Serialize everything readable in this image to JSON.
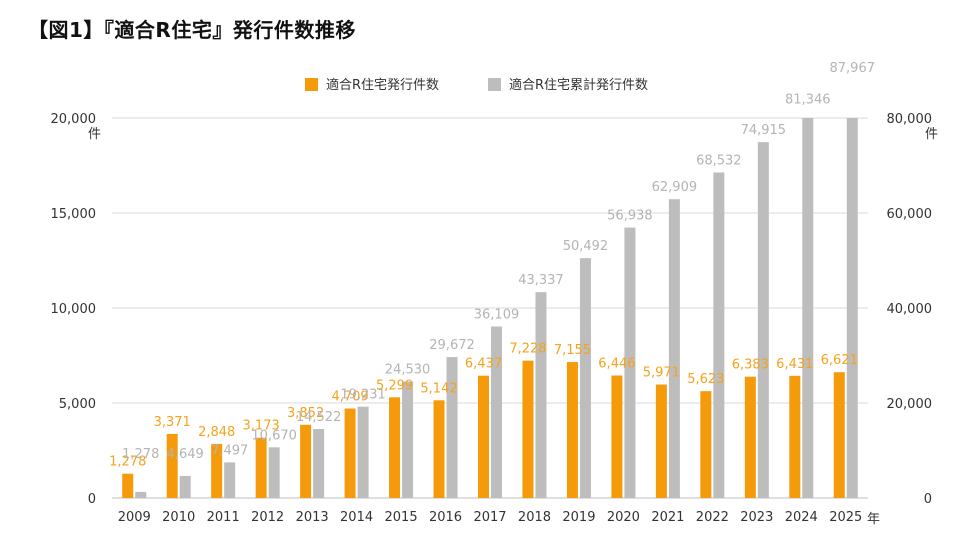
{
  "title": "【図1】『適合R住宅』発行件数推移",
  "colors": {
    "primary": "#f59a0a",
    "cumulative": "#bdbdbd",
    "primary_label": "#f7a21b",
    "cumulative_label": "#b4b4b4",
    "grid": "#d9d9d9"
  },
  "chart_data": {
    "type": "bar",
    "title": "【図1】『適合R住宅』発行件数推移",
    "categories": [
      "2009",
      "2010",
      "2011",
      "2012",
      "2013",
      "2014",
      "2015",
      "2016",
      "2017",
      "2018",
      "2019",
      "2020",
      "2021",
      "2022",
      "2023",
      "2024",
      "2025"
    ],
    "x_unit": "年",
    "series": [
      {
        "name": "適合R住宅発行件数",
        "axis": "left",
        "color": "#f59a0a",
        "values": [
          1278,
          3371,
          2848,
          3173,
          3852,
          4709,
          5299,
          5142,
          6437,
          7228,
          7155,
          6446,
          5971,
          5623,
          6383,
          6431,
          6621
        ],
        "labels": [
          "1,278",
          "3,371",
          "2,848",
          "3,173",
          "3,852",
          "4,709",
          "5,299",
          "5,142",
          "6,437",
          "7,228",
          "7,155",
          "6,446",
          "5,971",
          "5,623",
          "6,383",
          "6,431",
          "6,621"
        ]
      },
      {
        "name": "適合R住宅累計発行件数",
        "axis": "right",
        "color": "#bdbdbd",
        "values": [
          1278,
          4649,
          7497,
          10670,
          14522,
          19231,
          24530,
          29672,
          36109,
          43337,
          50492,
          56938,
          62909,
          68532,
          74915,
          81346,
          87967
        ],
        "labels": [
          "1,278",
          "4,649",
          "7,497",
          "10,670",
          "14,522",
          "19,231",
          "24,530",
          "29,672",
          "36,109",
          "43,337",
          "50,492",
          "56,938",
          "62,909",
          "68,532",
          "74,915",
          "81,346",
          "87,967"
        ]
      }
    ],
    "y_left": {
      "range": [
        0,
        20000
      ],
      "ticks": [
        "0",
        "5,000",
        "10,000",
        "15,000",
        "20,000"
      ],
      "unit": "件"
    },
    "y_right": {
      "range": [
        0,
        80000
      ],
      "ticks": [
        "0",
        "20,000",
        "40,000",
        "60,000",
        "80,000"
      ],
      "unit": "件"
    },
    "grid": true,
    "legend": "top-center"
  }
}
